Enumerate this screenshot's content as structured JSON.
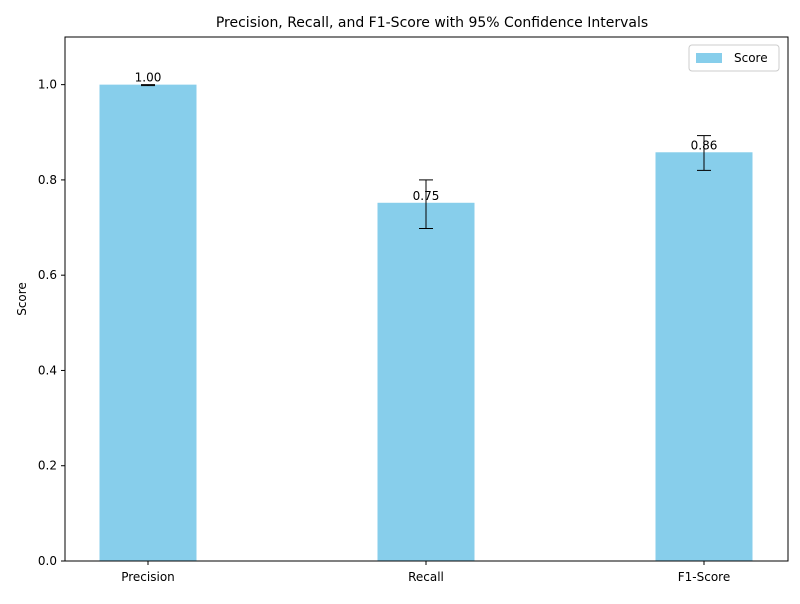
{
  "chart_data": {
    "type": "bar",
    "title": "Precision, Recall, and F1-Score with 95% Confidence Intervals",
    "xlabel": "",
    "ylabel": "Score",
    "categories": [
      "Precision",
      "Recall",
      "F1-Score"
    ],
    "series": [
      {
        "name": "Score",
        "values": [
          1.0,
          0.752,
          0.858
        ],
        "ci_lower": [
          0.998,
          0.698,
          0.82
        ],
        "ci_upper": [
          1.0,
          0.8,
          0.893
        ],
        "color": "#87ceeb"
      }
    ],
    "data_labels": [
      "1.00",
      "0.75",
      "0.86"
    ],
    "ylim": [
      0,
      1.1
    ],
    "yticks": [
      0.0,
      0.2,
      0.4,
      0.6,
      0.8,
      1.0
    ],
    "ytick_labels": [
      "0.0",
      "0.2",
      "0.4",
      "0.6",
      "0.8",
      "1.0"
    ],
    "grid": false,
    "legend_position": "top-right",
    "legend_entries": [
      "Score"
    ]
  }
}
